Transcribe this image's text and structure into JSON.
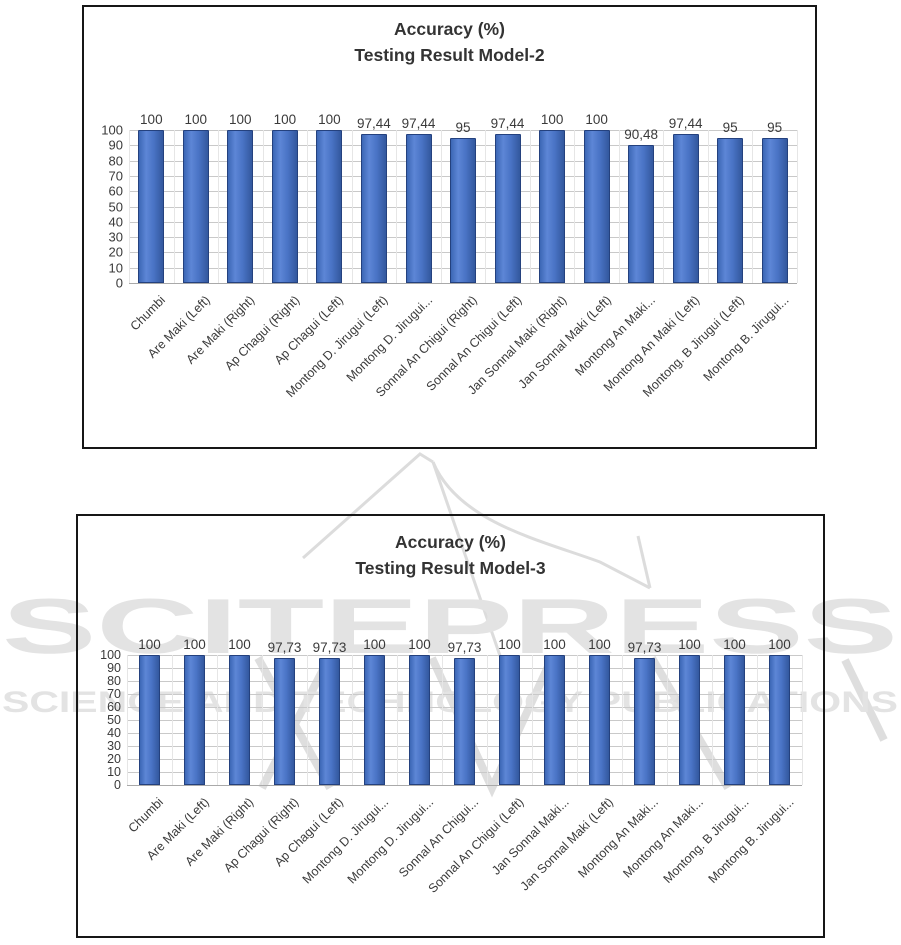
{
  "watermark": {
    "line1": "SCITEPRESS",
    "line2": "SCIENCE AND TECHNOLOGY PUBLICATIONS",
    "color": "#e3e3e3",
    "line_color": "#dcdcdc"
  },
  "colors": {
    "bar_fill": "#4472C4",
    "bar_edge": "#24417e",
    "gridline": "#c9c9c9",
    "axis_line": "#a9a9a9",
    "text": "#3a3a3a",
    "border": "#161616"
  },
  "chart_data": [
    {
      "type": "bar",
      "title_line1": "Accuracy (%)",
      "title_line2": "Testing Result Model-2",
      "xlabel": "",
      "ylabel": "",
      "ylim": [
        0,
        100
      ],
      "ytick_step": 10,
      "grid": true,
      "legend": "none",
      "categories": [
        "Chumbi",
        "Are Maki (Left)",
        "Are Maki (Right)",
        "Ap Chagui (Right)",
        "Ap Chagui (Left)",
        "Montong D. Jirugui (Left)",
        "Montong D. Jirugui...",
        "Sonnal An Chigui (Right)",
        "Sonnal An Chigui (Left)",
        "Jan Sonnal Maki (Right)",
        "Jan Sonnal Maki (Left)",
        "Montong An Maki...",
        "Montong An Maki (Left)",
        "Montong. B Jirugui (Left)",
        "Montong B. Jirugui..."
      ],
      "values": [
        100,
        100,
        100,
        100,
        100,
        97.44,
        97.44,
        95,
        97.44,
        100,
        100,
        90.48,
        97.44,
        95,
        95
      ],
      "value_labels": [
        "100",
        "100",
        "100",
        "100",
        "100",
        "97,44",
        "97,44",
        "95",
        "97,44",
        "100",
        "100",
        "90,48",
        "97,44",
        "95",
        "95"
      ]
    },
    {
      "type": "bar",
      "title_line1": "Accuracy (%)",
      "title_line2": "Testing Result Model-3",
      "xlabel": "",
      "ylabel": "",
      "ylim": [
        0,
        100
      ],
      "ytick_step": 10,
      "grid": true,
      "legend": "none",
      "categories": [
        "Chumbi",
        "Are Maki (Left)",
        "Are Maki (Right)",
        "Ap Chagui (Right)",
        "Ap Chagui (Left)",
        "Montong D. Jirugui...",
        "Montong D. Jirugui...",
        "Sonnal An Chigui...",
        "Sonnal An Chigui (Left)",
        "Jan Sonnal Maki...",
        "Jan Sonnal Maki (Left)",
        "Montong An Maki...",
        "Montong An Maki...",
        "Montong. B Jirugui...",
        "Montong B. Jirugui..."
      ],
      "values": [
        100,
        100,
        100,
        97.73,
        97.73,
        100,
        100,
        97.73,
        100,
        100,
        100,
        97.73,
        100,
        100,
        100
      ],
      "value_labels": [
        "100",
        "100",
        "100",
        "97,73",
        "97,73",
        "100",
        "100",
        "97,73",
        "100",
        "100",
        "100",
        "97,73",
        "100",
        "100",
        "100"
      ]
    }
  ]
}
